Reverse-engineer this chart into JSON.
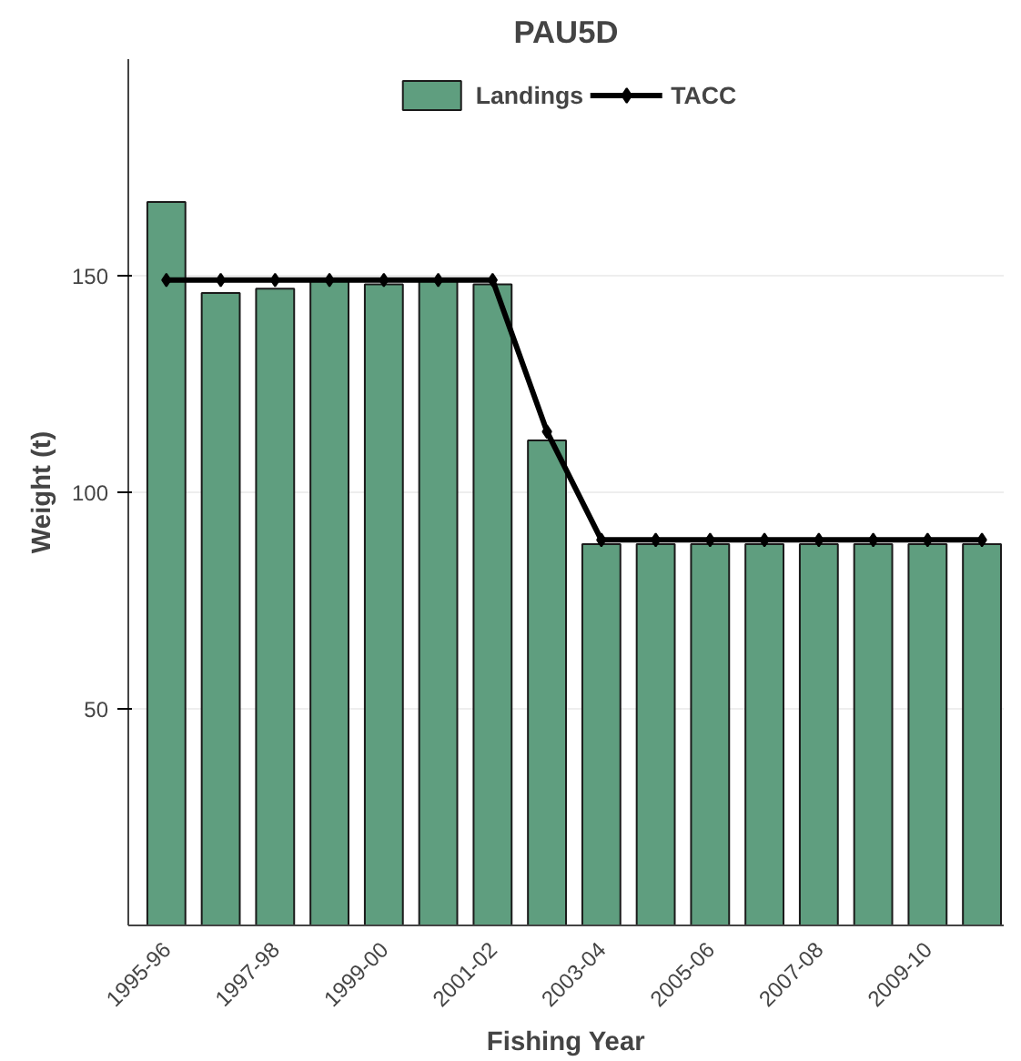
{
  "chart_data": {
    "type": "bar",
    "title": "PAU5D",
    "xlabel": "Fishing Year",
    "ylabel": "Weight (t)",
    "categories": [
      "1995-96",
      null,
      "1997-98",
      null,
      "1999-00",
      null,
      "2001-02",
      null,
      "2003-04",
      null,
      "2005-06",
      null,
      "2007-08",
      null,
      "2009-10",
      null
    ],
    "series": [
      {
        "name": "Landings",
        "color": "#5f9e7f",
        "values": [
          167,
          146,
          147,
          149,
          148,
          149,
          148,
          112,
          88,
          88,
          88,
          88,
          88,
          88,
          88,
          88
        ]
      },
      {
        "name": "TACC",
        "type": "line",
        "color": "#000000",
        "marker": "diamond",
        "values": [
          149,
          149,
          149,
          149,
          149,
          149,
          149,
          114,
          89,
          89,
          89,
          89,
          89,
          89,
          89,
          89
        ]
      }
    ],
    "ylim": [
      0,
      200
    ],
    "yticks": [
      50,
      100,
      150
    ],
    "grid": "y",
    "legend": "top"
  }
}
